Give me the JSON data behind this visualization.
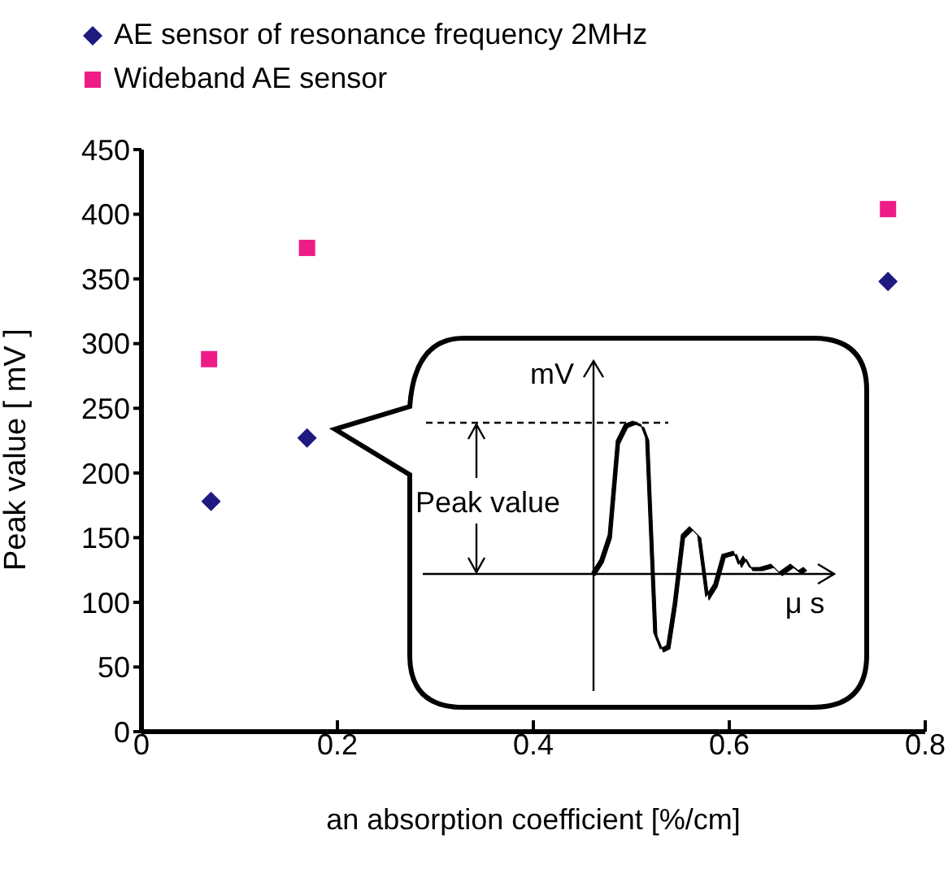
{
  "chart_data": {
    "type": "scatter",
    "xlabel": "an absorption coefficient [%/cm]",
    "ylabel": "Peak value [ mV ]",
    "xlim": [
      0,
      0.8
    ],
    "xticks": [
      0,
      0.2,
      0.4,
      0.6,
      0.8
    ],
    "ylim": [
      0,
      450
    ],
    "yticks": [
      0,
      50,
      100,
      150,
      200,
      250,
      300,
      350,
      400,
      450
    ],
    "grid": false,
    "legend": "top left",
    "series": [
      {
        "name": "AE sensor of resonance frequency 2MHz",
        "color": "#1f1a80",
        "marker": "diamond",
        "x": [
          0.071,
          0.169,
          0.762
        ],
        "values": [
          178,
          227,
          348
        ]
      },
      {
        "name": "Wideband AE sensor",
        "color": "#ee1c86",
        "marker": "square",
        "x": [
          0.069,
          0.169,
          0.762
        ],
        "values": [
          288,
          374,
          404
        ]
      }
    ],
    "annotations": [
      "mV",
      "Peak value",
      "μ s"
    ]
  }
}
